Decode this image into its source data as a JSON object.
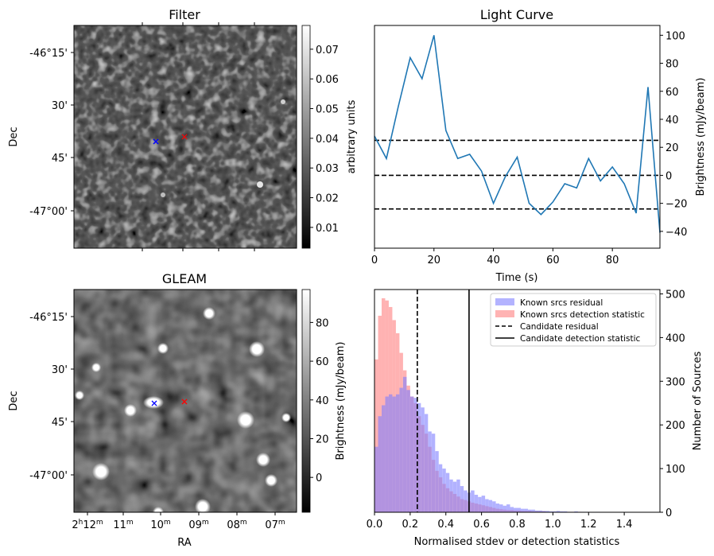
{
  "chart_data": [
    {
      "type": "heatmap",
      "title": "Filter",
      "ylabel": "Dec",
      "y_ticks": [
        "-46°15'",
        "30'",
        "45'",
        "-47°00'"
      ],
      "colorbar": {
        "label": "arbitrary units",
        "range": [
          0.003,
          0.078
        ],
        "ticks": [
          "0.01",
          "0.02",
          "0.03",
          "0.04",
          "0.05",
          "0.06",
          "0.07"
        ],
        "cmap": "gray"
      },
      "markers": [
        {
          "name": "blue x",
          "color": "#0000ff"
        },
        {
          "name": "red x",
          "color": "#ff0000"
        }
      ]
    },
    {
      "type": "line",
      "title": "Light Curve",
      "xlabel": "Time (s)",
      "ylabel": "Brightness (mJy/beam)",
      "xlim": [
        0,
        96
      ],
      "ylim": [
        -52,
        107
      ],
      "x_ticks": [
        "0",
        "20",
        "40",
        "60",
        "80"
      ],
      "y_ticks": [
        "-40",
        "-20",
        "0",
        "20",
        "40",
        "60",
        "80",
        "100"
      ],
      "color": "#1f77b4",
      "x": [
        0,
        4,
        8,
        12,
        16,
        20,
        24,
        28,
        32,
        36,
        40,
        44,
        48,
        52,
        56,
        60,
        64,
        68,
        72,
        76,
        80,
        84,
        88,
        92,
        96
      ],
      "y": [
        28,
        12,
        49,
        84,
        69,
        100,
        32,
        12,
        15,
        3,
        -20,
        -1,
        13,
        -20,
        -28,
        -19,
        -6,
        -9,
        12,
        -4,
        6,
        -6,
        -27,
        63,
        -41
      ],
      "hlines": [
        25,
        0,
        -24
      ],
      "hline_style": "dashed"
    },
    {
      "type": "heatmap",
      "title": "GLEAM",
      "xlabel": "RA",
      "ylabel": "Dec",
      "x_ticks": [
        "2h12m",
        "11m",
        "10m",
        "09m",
        "08m",
        "07m"
      ],
      "y_ticks": [
        "-46°15'",
        "30'",
        "45'",
        "-47°00'"
      ],
      "colorbar": {
        "label": "Brightness (mJy/beam)",
        "range": [
          -18,
          97
        ],
        "ticks": [
          "0",
          "20",
          "40",
          "60",
          "80"
        ],
        "cmap": "gray"
      },
      "markers": [
        {
          "name": "blue x",
          "color": "#0000ff"
        },
        {
          "name": "red x",
          "color": "#ff0000"
        }
      ]
    },
    {
      "type": "bar",
      "subtype": "histogram",
      "xlabel": "Normalised stdev or detection statistics",
      "ylabel": "Number of Sources",
      "xlim": [
        0,
        1.6
      ],
      "ylim": [
        0,
        510
      ],
      "x_ticks": [
        "0.0",
        "0.2",
        "0.4",
        "0.6",
        "0.8",
        "1.0",
        "1.2",
        "1.4"
      ],
      "y_ticks": [
        "0",
        "100",
        "200",
        "300",
        "400",
        "500"
      ],
      "bin_width": 0.02,
      "bin_start": 0.0,
      "series": [
        {
          "name": "Known srcs residual",
          "color": "#8080ff",
          "values": [
            150,
            220,
            245,
            265,
            270,
            265,
            270,
            285,
            310,
            280,
            265,
            262,
            250,
            240,
            225,
            185,
            180,
            140,
            110,
            100,
            90,
            75,
            70,
            75,
            60,
            50,
            45,
            50,
            40,
            35,
            38,
            30,
            28,
            25,
            20,
            18,
            15,
            18,
            12,
            10,
            10,
            8,
            8,
            6,
            6,
            4,
            4,
            3,
            3,
            2,
            2,
            3,
            2,
            2,
            1,
            1,
            2,
            1,
            1,
            1,
            0,
            0,
            1,
            0,
            0,
            0,
            0,
            0,
            0,
            0,
            0,
            0,
            0,
            0,
            0,
            0,
            0,
            0,
            0,
            0
          ]
        },
        {
          "name": "Known srcs detection statistic",
          "color": "#ff8080",
          "values": [
            350,
            450,
            490,
            485,
            470,
            440,
            410,
            365,
            325,
            290,
            265,
            250,
            220,
            200,
            180,
            150,
            120,
            95,
            80,
            65,
            55,
            48,
            42,
            36,
            30,
            28,
            25,
            22,
            20,
            18,
            16,
            14,
            12,
            10,
            8,
            7,
            6,
            5,
            5,
            4,
            4,
            3,
            3,
            3,
            2,
            2,
            2,
            2,
            1,
            1,
            1,
            1,
            1,
            1,
            1,
            1,
            1,
            1,
            0,
            0,
            0,
            0,
            0,
            0,
            0,
            0,
            0,
            0,
            0,
            0,
            0,
            0,
            0,
            0,
            0,
            0,
            0,
            0,
            0,
            0
          ]
        }
      ],
      "vlines": [
        {
          "name": "Candidate residual",
          "x": 0.24,
          "style": "dashed"
        },
        {
          "name": "Candidate detection statistic",
          "x": 0.53,
          "style": "solid"
        }
      ],
      "legend_position": "top-right"
    }
  ]
}
